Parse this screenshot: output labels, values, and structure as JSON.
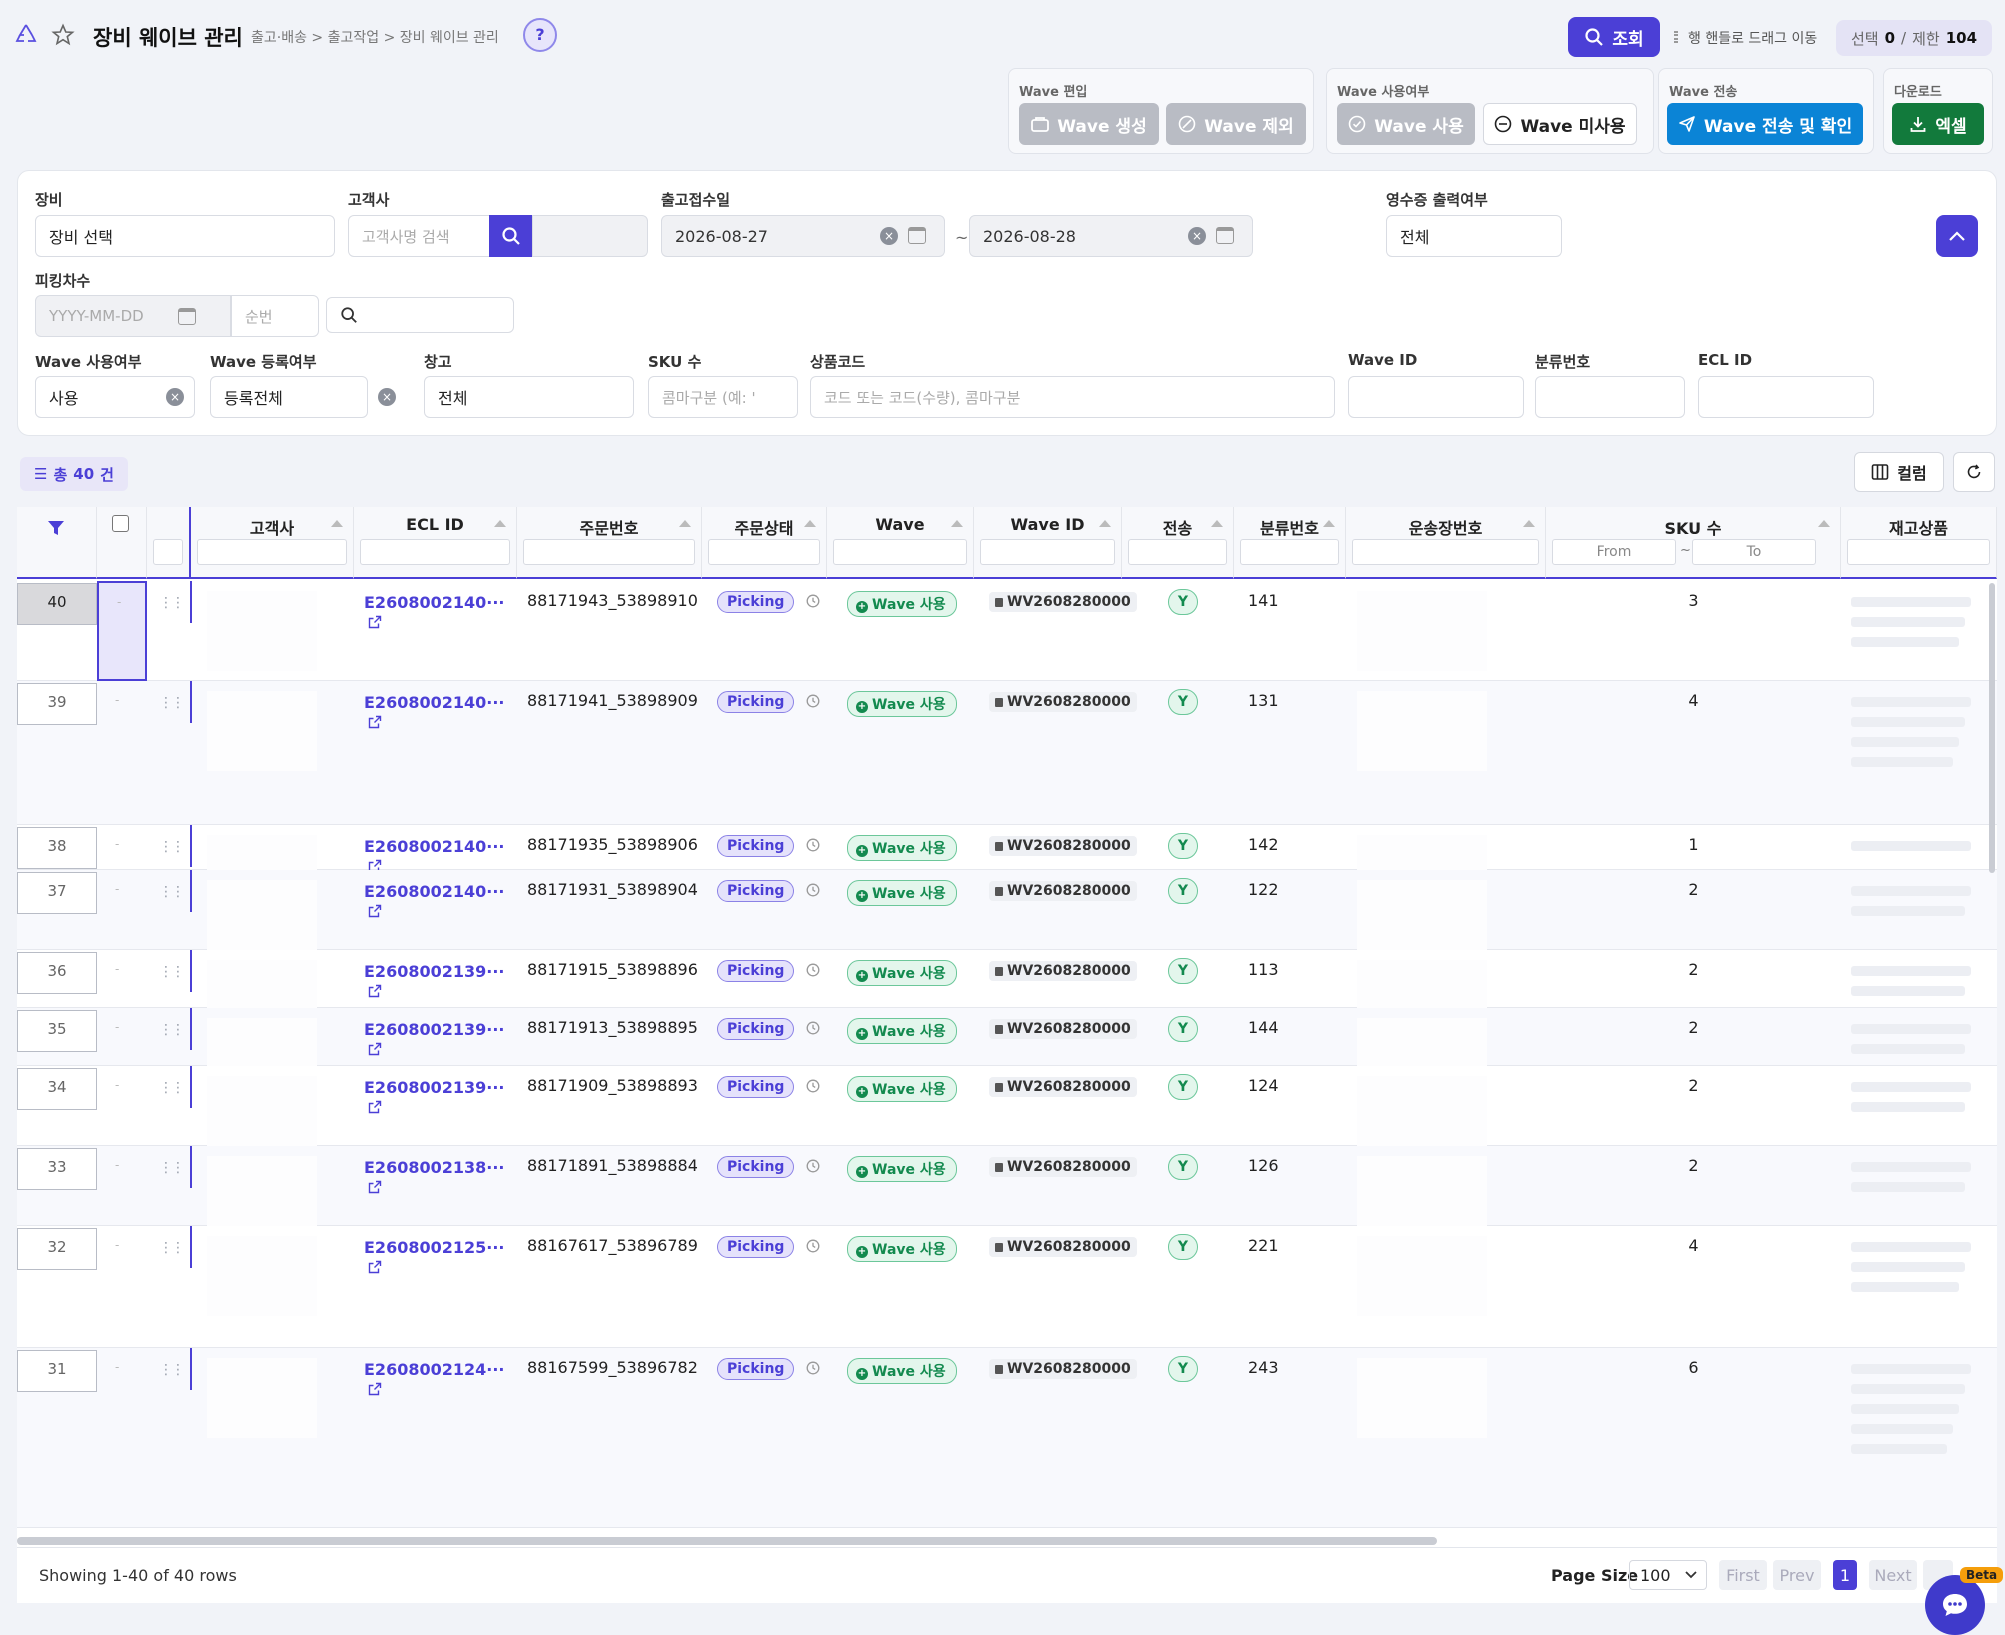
{
  "header": {
    "title": "장비 웨이브 관리",
    "breadcrumb": "출고·배송 > 출고작업 > 장비 웨이브 관리",
    "help": "?",
    "search_btn": "조회",
    "drag_hint": "행 핸들로 드래그 이동",
    "select_label": "선택",
    "select_count": "0",
    "slash": "/",
    "limit_label": "제한",
    "limit_count": "104"
  },
  "groups": {
    "wave_edit": {
      "label": "Wave 편입",
      "create": "Wave 생성",
      "exclude": "Wave 제외"
    },
    "wave_use": {
      "label": "Wave 사용여부",
      "use": "Wave 사용",
      "unuse": "Wave 미사용"
    },
    "wave_send": {
      "label": "Wave 전송",
      "send": "Wave 전송 및 확인"
    },
    "download": {
      "label": "다운로드",
      "excel": "엑셀"
    }
  },
  "filters": {
    "equipment": {
      "label": "장비",
      "value": "장비 선택"
    },
    "customer": {
      "label": "고객사",
      "placeholder": "고객사명 검색"
    },
    "date": {
      "label": "출고접수일",
      "from": "2026-08-27",
      "tilde": "~",
      "to": "2026-08-28"
    },
    "receipt": {
      "label": "영수증 출력여부",
      "value": "전체"
    },
    "picking": {
      "label": "피킹차수",
      "date_placeholder": "YYYY-MM-DD",
      "seq_placeholder": "순번"
    },
    "wave_use": {
      "label": "Wave 사용여부",
      "value": "사용"
    },
    "wave_reg": {
      "label": "Wave 등록여부",
      "value": "등록전체"
    },
    "warehouse": {
      "label": "창고",
      "value": "전체"
    },
    "sku": {
      "label": "SKU 수",
      "placeholder": "콤마구분 (예: '"
    },
    "product": {
      "label": "상품코드",
      "placeholder": "코드 또는 코드(수량), 콤마구분"
    },
    "wave_id": {
      "label": "Wave ID"
    },
    "sort_no": {
      "label": "분류번호"
    },
    "ecl_id": {
      "label": "ECL ID"
    }
  },
  "summary": {
    "total_prefix": "총",
    "total": "40",
    "total_suffix": "건",
    "columns_btn": "컬럼"
  },
  "columns": {
    "customer": "고객사",
    "ecl": "ECL ID",
    "order": "주문번호",
    "status": "주문상태",
    "wave": "Wave",
    "wave_id": "Wave ID",
    "send": "전송",
    "sort_no": "분류번호",
    "invoice": "운송장번호",
    "sku": "SKU 수",
    "stock": "재고상품",
    "sku_from": "From",
    "sku_tilde": "~",
    "sku_to": "To"
  },
  "rows": [
    {
      "no": "40",
      "ecl": "E2608002140···",
      "order": "88171943_53898910",
      "status": "Picking",
      "wave": "Wave 사용",
      "wave_id": "WV2608280000",
      "send": "Y",
      "sort_no": "141",
      "sku": "3"
    },
    {
      "no": "39",
      "ecl": "E2608002140···",
      "order": "88171941_53898909",
      "status": "Picking",
      "wave": "Wave 사용",
      "wave_id": "WV2608280000",
      "send": "Y",
      "sort_no": "131",
      "sku": "4"
    },
    {
      "no": "38",
      "ecl": "E2608002140···",
      "order": "88171935_53898906",
      "status": "Picking",
      "wave": "Wave 사용",
      "wave_id": "WV2608280000",
      "send": "Y",
      "sort_no": "142",
      "sku": "1"
    },
    {
      "no": "37",
      "ecl": "E2608002140···",
      "order": "88171931_53898904",
      "status": "Picking",
      "wave": "Wave 사용",
      "wave_id": "WV2608280000",
      "send": "Y",
      "sort_no": "122",
      "sku": "2"
    },
    {
      "no": "36",
      "ecl": "E2608002139···",
      "order": "88171915_53898896",
      "status": "Picking",
      "wave": "Wave 사용",
      "wave_id": "WV2608280000",
      "send": "Y",
      "sort_no": "113",
      "sku": "2"
    },
    {
      "no": "35",
      "ecl": "E2608002139···",
      "order": "88171913_53898895",
      "status": "Picking",
      "wave": "Wave 사용",
      "wave_id": "WV2608280000",
      "send": "Y",
      "sort_no": "144",
      "sku": "2"
    },
    {
      "no": "34",
      "ecl": "E2608002139···",
      "order": "88171909_53898893",
      "status": "Picking",
      "wave": "Wave 사용",
      "wave_id": "WV2608280000",
      "send": "Y",
      "sort_no": "124",
      "sku": "2"
    },
    {
      "no": "33",
      "ecl": "E2608002138···",
      "order": "88171891_53898884",
      "status": "Picking",
      "wave": "Wave 사용",
      "wave_id": "WV2608280000",
      "send": "Y",
      "sort_no": "126",
      "sku": "2"
    },
    {
      "no": "32",
      "ecl": "E2608002125···",
      "order": "88167617_53896789",
      "status": "Picking",
      "wave": "Wave 사용",
      "wave_id": "WV2608280000",
      "send": "Y",
      "sort_no": "221",
      "sku": "4"
    },
    {
      "no": "31",
      "ecl": "E2608002124···",
      "order": "88167599_53896782",
      "status": "Picking",
      "wave": "Wave 사용",
      "wave_id": "WV2608280000",
      "send": "Y",
      "sort_no": "243",
      "sku": "6"
    }
  ],
  "footer": {
    "showing": "Showing 1-40 of 40 rows",
    "page_size_label": "Page Size",
    "page_size": "100",
    "first": "First",
    "prev": "Prev",
    "page": "1",
    "next": "Next",
    "beta": "Beta"
  },
  "colors": {
    "accent": "#4b3fd6",
    "send": "#0b84d6",
    "excel": "#127a3c"
  }
}
